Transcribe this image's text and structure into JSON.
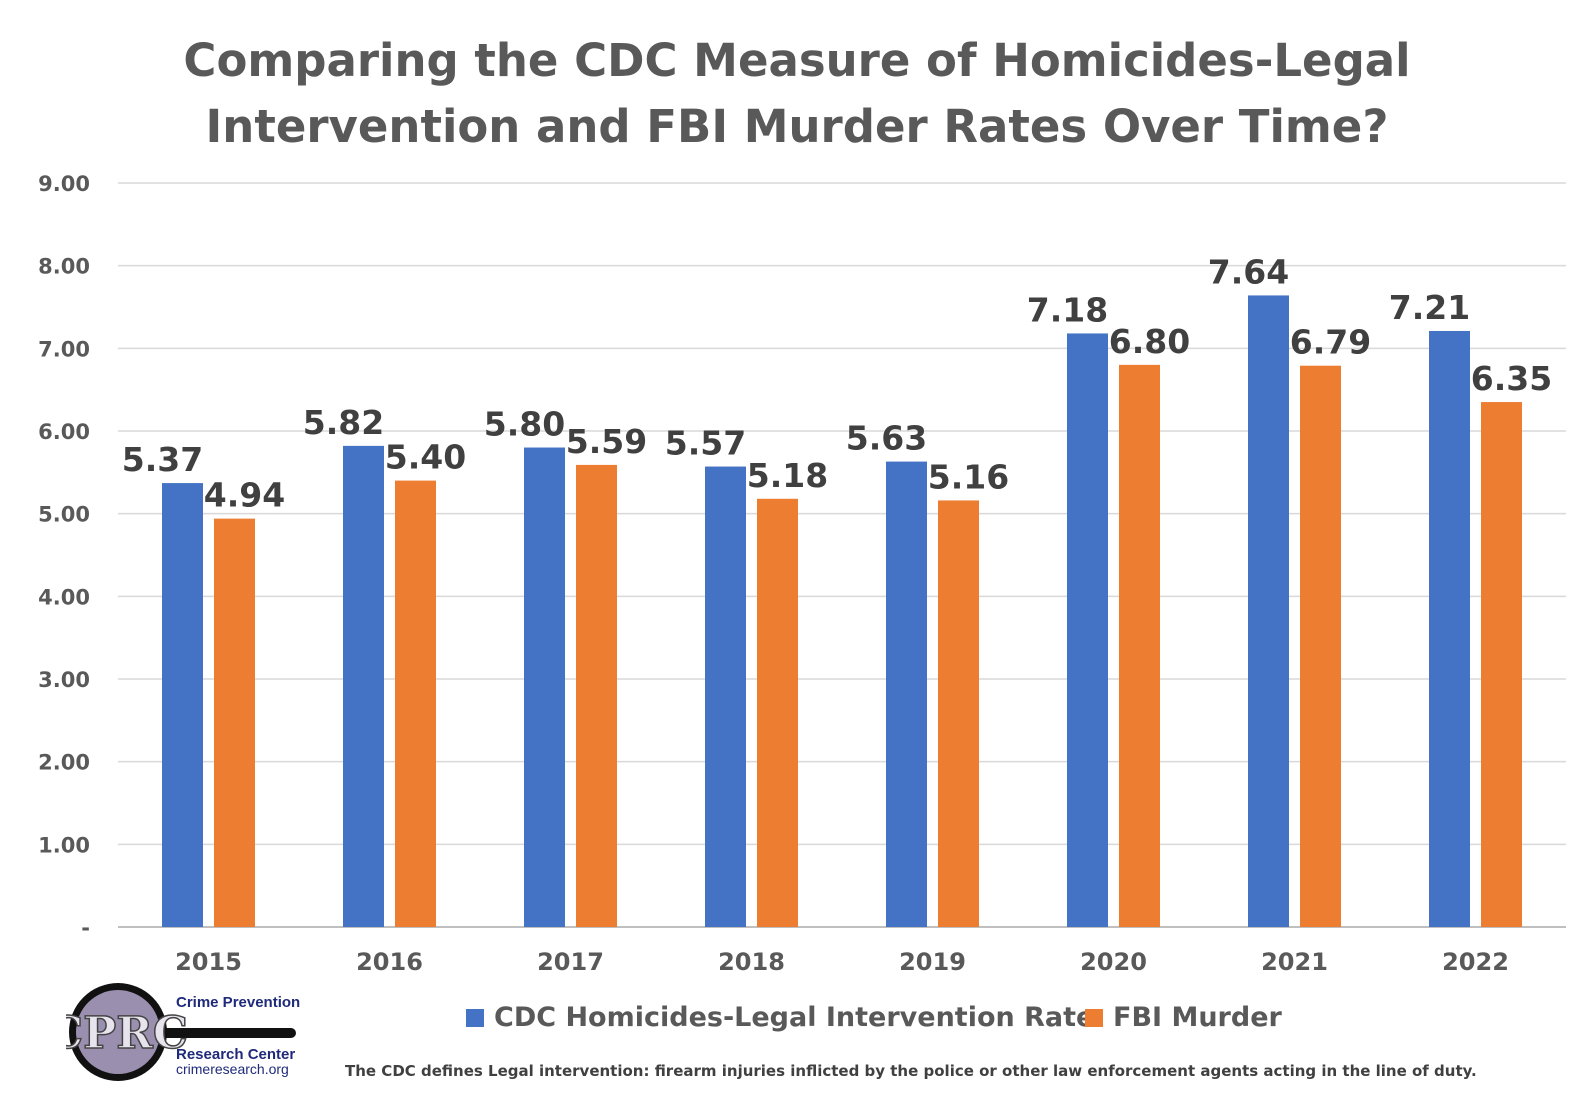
{
  "title_line1": "Comparing the CDC Measure of Homicides-Legal",
  "title_line2": "Intervention and FBI Murder Rates Over Time?",
  "footnote": "The CDC defines Legal intervention: firearm injuries inflicted by the police or other law enforcement agents acting in the line of duty.",
  "logo": {
    "monogram": "CPRC",
    "line1": "Crime Prevention",
    "line2": "Research Center",
    "line3": "crimeresearch.org"
  },
  "colors": {
    "cdc": "#4472C4",
    "fbi": "#ED7D31",
    "text": "#595959",
    "grid": "#D9D9D9"
  },
  "chart_data": {
    "type": "bar",
    "title": "Comparing the CDC Measure of Homicides-Legal Intervention and FBI Murder Rates Over Time?",
    "categories": [
      "2015",
      "2016",
      "2017",
      "2018",
      "2019",
      "2020",
      "2021",
      "2022"
    ],
    "series": [
      {
        "name": "CDC Homicides-Legal Intervention Rate",
        "values": [
          5.37,
          5.82,
          5.8,
          5.57,
          5.63,
          7.18,
          7.64,
          7.21
        ]
      },
      {
        "name": "FBI Murder",
        "values": [
          4.94,
          5.4,
          5.59,
          5.18,
          5.16,
          6.8,
          6.79,
          6.35
        ]
      }
    ],
    "ylim": [
      0,
      9
    ],
    "yticks": [
      "-",
      "1.00",
      "2.00",
      "3.00",
      "4.00",
      "5.00",
      "6.00",
      "7.00",
      "8.00",
      "9.00"
    ],
    "grid": true,
    "legend_position": "bottom",
    "xlabel": "",
    "ylabel": ""
  }
}
